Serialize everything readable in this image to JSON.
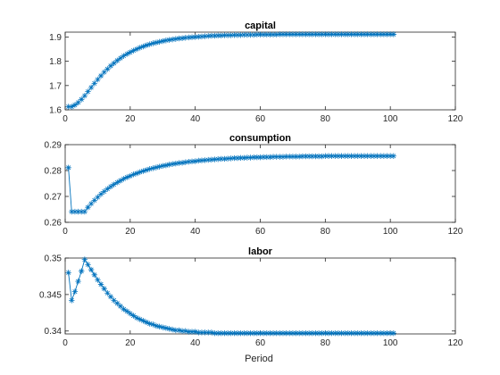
{
  "figure": {
    "xlabel": "Period"
  },
  "colors": {
    "series": "#0072BD",
    "axes": "#262626",
    "background": "#ffffff"
  },
  "chart_data": [
    {
      "type": "line",
      "title": "capital",
      "marker": "asterisk",
      "xlim": [
        0,
        120
      ],
      "ylim": [
        1.6,
        1.92
      ],
      "xticks": [
        0,
        20,
        40,
        60,
        80,
        100,
        120
      ],
      "yticks": [
        1.6,
        1.7,
        1.8,
        1.9
      ],
      "ytick_labels": [
        "1.6",
        "1.7",
        "1.8",
        "1.9"
      ],
      "series": [
        {
          "name": "",
          "x_start": 1,
          "x_end": 101,
          "values": [
            1.613,
            1.613,
            1.62,
            1.63,
            1.643,
            1.658,
            1.675,
            1.692,
            1.709,
            1.725,
            1.74,
            1.755,
            1.768,
            1.781,
            1.792,
            1.803,
            1.813,
            1.822,
            1.83,
            1.837,
            1.844,
            1.85,
            1.856,
            1.861,
            1.866,
            1.87,
            1.874,
            1.877,
            1.88,
            1.883,
            1.886,
            1.888,
            1.89,
            1.892,
            1.894,
            1.895,
            1.897,
            1.898,
            1.899,
            1.9,
            1.901,
            1.902,
            1.903,
            1.904,
            1.905,
            1.905,
            1.906,
            1.906,
            1.907,
            1.907,
            1.907,
            1.908,
            1.908,
            1.908,
            1.909,
            1.909,
            1.909,
            1.909,
            1.91,
            1.91,
            1.91,
            1.91,
            1.91,
            1.91,
            1.91,
            1.911,
            1.911,
            1.911,
            1.911,
            1.911,
            1.911,
            1.911,
            1.911,
            1.911,
            1.911,
            1.911,
            1.911,
            1.911,
            1.911,
            1.911,
            1.911,
            1.911,
            1.911,
            1.911,
            1.911,
            1.911,
            1.911,
            1.911,
            1.911,
            1.911,
            1.911,
            1.911,
            1.911,
            1.911,
            1.911,
            1.911,
            1.911,
            1.911,
            1.911,
            1.911,
            1.911
          ]
        }
      ]
    },
    {
      "type": "line",
      "title": "consumption",
      "marker": "asterisk",
      "xlim": [
        0,
        120
      ],
      "ylim": [
        0.26,
        0.29
      ],
      "xticks": [
        0,
        20,
        40,
        60,
        80,
        100,
        120
      ],
      "yticks": [
        0.26,
        0.27,
        0.28,
        0.29
      ],
      "ytick_labels": [
        "0.26",
        "0.27",
        "0.28",
        "0.29"
      ],
      "series": [
        {
          "name": "",
          "x_start": 1,
          "x_end": 101,
          "values": [
            0.2811,
            0.2641,
            0.2641,
            0.2641,
            0.2641,
            0.2641,
            0.2658,
            0.2672,
            0.2685,
            0.2697,
            0.2709,
            0.2719,
            0.2729,
            0.2738,
            0.2746,
            0.2754,
            0.2761,
            0.2768,
            0.2774,
            0.2779,
            0.2785,
            0.2789,
            0.2794,
            0.2798,
            0.2802,
            0.2806,
            0.2809,
            0.2812,
            0.2815,
            0.2818,
            0.282,
            0.2823,
            0.2825,
            0.2827,
            0.2829,
            0.283,
            0.2832,
            0.2834,
            0.2835,
            0.2836,
            0.2838,
            0.2839,
            0.284,
            0.2841,
            0.2842,
            0.2843,
            0.2844,
            0.2845,
            0.2845,
            0.2846,
            0.2847,
            0.2848,
            0.2848,
            0.2849,
            0.2849,
            0.285,
            0.285,
            0.2851,
            0.2851,
            0.2851,
            0.2852,
            0.2852,
            0.2852,
            0.2853,
            0.2853,
            0.2853,
            0.2853,
            0.2854,
            0.2854,
            0.2854,
            0.2854,
            0.2854,
            0.2855,
            0.2855,
            0.2855,
            0.2855,
            0.2855,
            0.2855,
            0.2855,
            0.2856,
            0.2856,
            0.2856,
            0.2856,
            0.2856,
            0.2856,
            0.2856,
            0.2856,
            0.2856,
            0.2856,
            0.2856,
            0.2856,
            0.2856,
            0.2856,
            0.2856,
            0.2856,
            0.2856,
            0.2856,
            0.2856,
            0.2856,
            0.2856,
            0.2856
          ]
        }
      ]
    },
    {
      "type": "line",
      "title": "labor",
      "marker": "asterisk",
      "xlim": [
        0,
        120
      ],
      "ylim": [
        0.3396,
        0.35
      ],
      "xticks": [
        0,
        20,
        40,
        60,
        80,
        100,
        120
      ],
      "yticks": [
        0.34,
        0.345,
        0.35
      ],
      "ytick_labels": [
        "0.34",
        "0.345",
        "0.35"
      ],
      "series": [
        {
          "name": "",
          "x_start": 1,
          "x_end": 101,
          "values": [
            0.348,
            0.3442,
            0.3454,
            0.3468,
            0.3482,
            0.3498,
            0.3491,
            0.3484,
            0.3477,
            0.347,
            0.3464,
            0.3458,
            0.3452,
            0.3447,
            0.3442,
            0.3438,
            0.3434,
            0.343,
            0.3427,
            0.3424,
            0.3421,
            0.3418,
            0.3416,
            0.3414,
            0.3412,
            0.341,
            0.3409,
            0.3407,
            0.3406,
            0.3405,
            0.3404,
            0.3403,
            0.3402,
            0.3401,
            0.3401,
            0.34,
            0.34,
            0.3399,
            0.3399,
            0.3399,
            0.3398,
            0.3398,
            0.3398,
            0.3398,
            0.3398,
            0.3397,
            0.3397,
            0.3397,
            0.3397,
            0.3397,
            0.3397,
            0.3397,
            0.3397,
            0.3397,
            0.3397,
            0.3397,
            0.3397,
            0.3397,
            0.3397,
            0.3397,
            0.3397,
            0.3397,
            0.3397,
            0.3397,
            0.3397,
            0.3397,
            0.3397,
            0.3397,
            0.3397,
            0.3397,
            0.3397,
            0.3397,
            0.3397,
            0.3397,
            0.3397,
            0.3397,
            0.3397,
            0.3397,
            0.3397,
            0.3397,
            0.3397,
            0.3397,
            0.3397,
            0.3397,
            0.3397,
            0.3397,
            0.3397,
            0.3397,
            0.3397,
            0.3397,
            0.3397,
            0.3397,
            0.3397,
            0.3397,
            0.3397,
            0.3397,
            0.3397,
            0.3397,
            0.3397,
            0.3397,
            0.3397
          ]
        }
      ]
    }
  ]
}
